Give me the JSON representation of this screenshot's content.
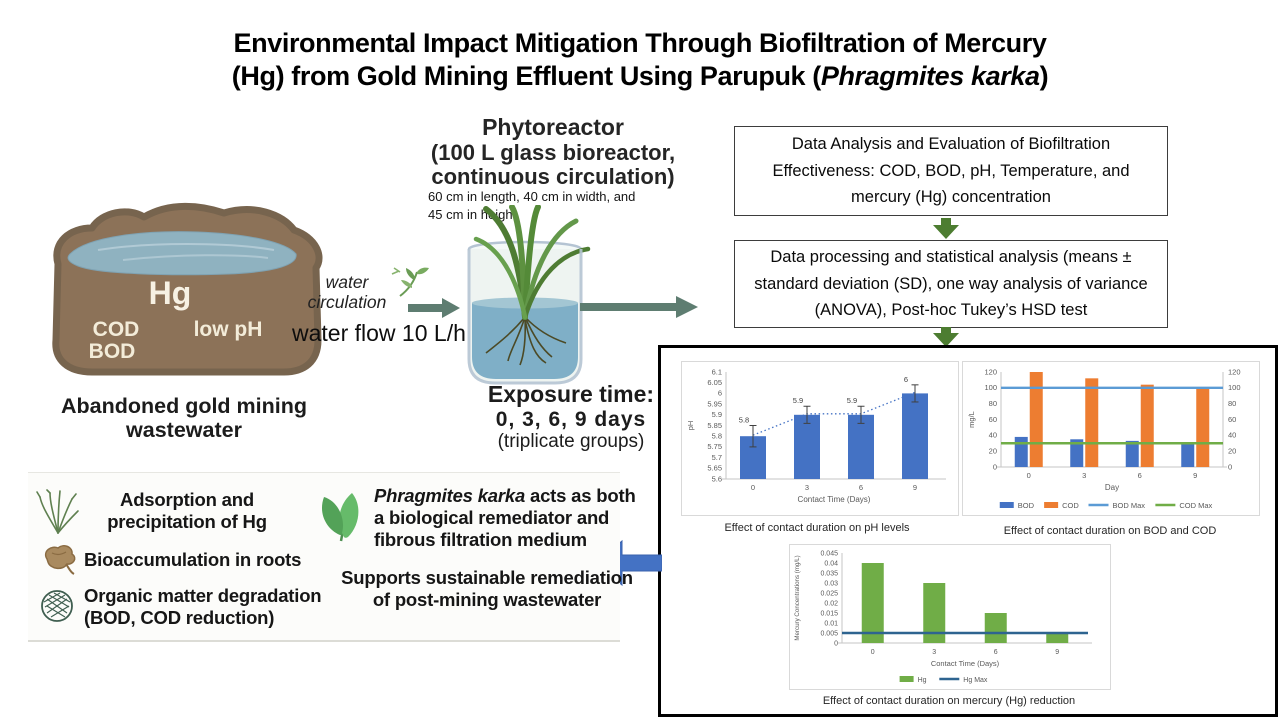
{
  "title": {
    "line1": "Environmental Impact Mitigation Through Biofiltration of Mercury",
    "line2_pre": "(Hg) from Gold Mining Effluent Using Parupuk (",
    "line2_italic": "Phragmites karka",
    "line2_post": ")"
  },
  "pond": {
    "hg_label": "Hg",
    "cod_label": "COD",
    "bod_label": "BOD",
    "ph_label": "low pH",
    "caption_line1": "Abandoned gold mining",
    "caption_line2": "wastewater"
  },
  "reactor": {
    "title": "Phytoreactor",
    "subtitle_line1": "(100 L glass bioreactor,",
    "subtitle_line2": "continuous circulation)",
    "dims_line1": "60 cm in length, 40 cm in width, and",
    "dims_line2": "45 cm in height",
    "circulation_line1": "water",
    "circulation_line2": "circulation",
    "flow": "water flow 10 L/h",
    "exposure_title": "Exposure time:",
    "exposure_line1": "0, 3, 6, 9 days",
    "exposure_line2": "(triplicate groups)"
  },
  "flow_boxes": {
    "box1": "Data Analysis and Evaluation of Biofiltration Effectiveness: COD, BOD, pH, Temperature, and mercury (Hg) concentration",
    "box2": "Data processing and statistical analysis (means ± standard deviation (SD), one way analysis of variance (ANOVA), Post-hoc Tukey’s HSD test"
  },
  "mechanisms": {
    "item1": "Adsorption and precipitation of Hg",
    "item2": "Bioaccumulation in roots",
    "item3": "Organic matter degradation (BOD, COD reduction)",
    "karka_italic": "Phragmites karka",
    "karka_rest": " acts as both a biological remediator and fibrous filtration medium",
    "support": "Supports sustainable remediation of post-mining wastewater"
  },
  "chart_data": [
    {
      "type": "bar",
      "caption": "Effect of contact duration on pH levels",
      "categories": [
        "0",
        "3",
        "6",
        "9"
      ],
      "series": [
        {
          "name": "pH",
          "color": "#4472c4",
          "values": [
            5.8,
            5.9,
            5.9,
            6
          ]
        }
      ],
      "error": [
        0.05,
        0.04,
        0.04,
        0.04
      ],
      "bar_labels": [
        "5.8",
        "5.9",
        "5.9",
        "6"
      ],
      "trendline": true,
      "xlabel": "Contact Time (Days)",
      "ylabel": "pH",
      "ylim": [
        5.6,
        6.1
      ],
      "ystep": 0.05,
      "show_legend": false
    },
    {
      "type": "bar",
      "caption": "Effect of contact duration on BOD and COD",
      "categories": [
        "0",
        "3",
        "6",
        "9"
      ],
      "series": [
        {
          "name": "BOD",
          "color": "#4472c4",
          "values": [
            38,
            35,
            33,
            29
          ]
        },
        {
          "name": "COD",
          "color": "#ed7d31",
          "values": [
            120,
            112,
            104,
            99
          ]
        }
      ],
      "ref_lines": [
        {
          "name": "BOD Max",
          "color": "#5b9bd5",
          "value": 100
        },
        {
          "name": "COD Max",
          "color": "#70ad47",
          "value": 30
        }
      ],
      "xlabel": "Day",
      "ylabel": "mg/L",
      "ylim": [
        0,
        120
      ],
      "ystep": 20,
      "right_axis": true,
      "show_legend": true
    },
    {
      "type": "bar",
      "caption": "Effect of contact duration on mercury (Hg) reduction",
      "categories": [
        "0",
        "3",
        "6",
        "9"
      ],
      "series": [
        {
          "name": "Hg",
          "color": "#70ad47",
          "values": [
            0.04,
            0.03,
            0.015,
            0.005
          ]
        }
      ],
      "ref_lines": [
        {
          "name": "Hg Max",
          "color": "#2e6490",
          "value": 0.005
        }
      ],
      "xlabel": "Contact Time (Days)",
      "ylabel": "Mercury Concentrations (mg/L)",
      "ylim": [
        0,
        0.045
      ],
      "ystep": 0.005,
      "show_legend": true
    }
  ]
}
